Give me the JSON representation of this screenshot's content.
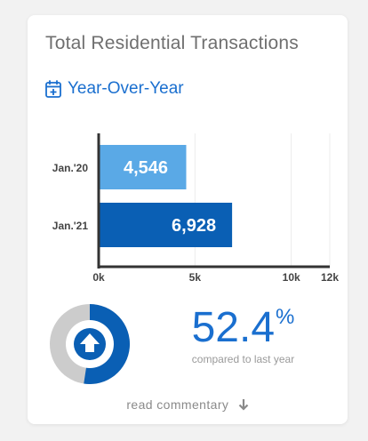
{
  "card": {
    "title": "Total Residential Transactions",
    "subtitle": "Year-Over-Year",
    "subtitle_icon": "calendar-plus-icon"
  },
  "chart_data": {
    "type": "bar",
    "orientation": "horizontal",
    "categories": [
      "Jan.'20",
      "Jan.'21"
    ],
    "values": [
      4546,
      6928
    ],
    "value_labels": [
      "4,546",
      "6,928"
    ],
    "bar_colors": [
      "#5aa9e6",
      "#0a5fb4"
    ],
    "xlim": [
      0,
      12000
    ],
    "xticks": [
      0,
      5000,
      10000,
      12000
    ],
    "xtick_labels": [
      "0k",
      "5k",
      "10k",
      "12k"
    ],
    "grid": true
  },
  "summary": {
    "percent_value": "52.4",
    "percent_symbol": "%",
    "percent_fraction": 0.524,
    "compare_text": "compared to last year",
    "ring_colors": {
      "filled": "#0a5fb4",
      "empty": "#cccccc"
    },
    "center_icon": "up-arrow-icon"
  },
  "footer": {
    "read_label": "read commentary",
    "read_icon": "down-arrow-icon"
  }
}
